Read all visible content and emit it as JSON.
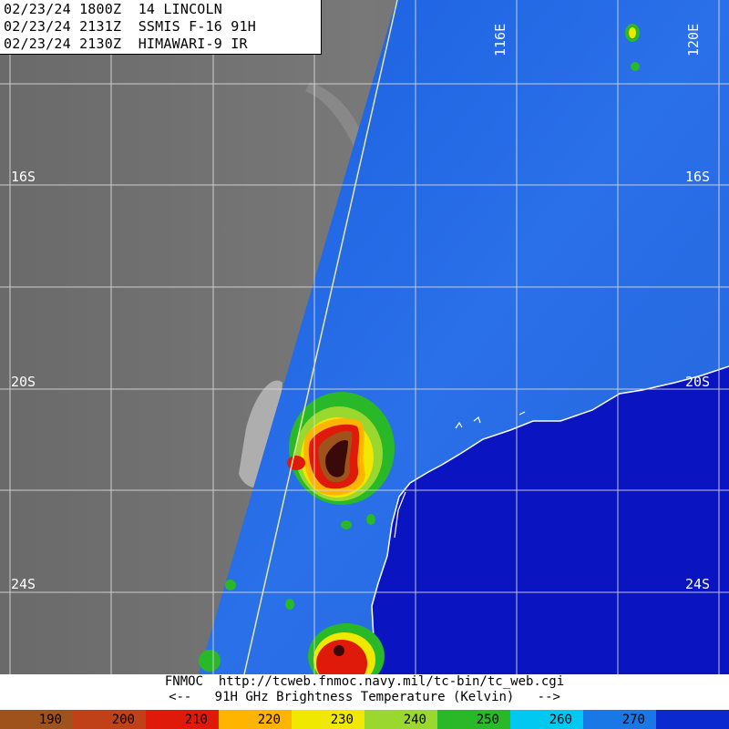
{
  "header": {
    "lines": [
      "02/23/24 1800Z  14 LINCOLN",
      "02/23/24 2131Z  SSMIS F-16 91H",
      "02/23/24 2130Z  HIMAWARI-9 IR"
    ]
  },
  "grid": {
    "lat_labels": [
      "16S",
      "20S",
      "24S"
    ],
    "lon_labels": [
      "116E",
      "120E"
    ]
  },
  "footer": {
    "credit": "FNMOC  http://tcweb.fnmoc.navy.mil/tc-bin/tc_web.cgi",
    "legend_title": "<--   91H GHz Brightness Temperature (Kelvin)   -->"
  },
  "colorbar": {
    "ticks": [
      "190",
      "200",
      "210",
      "220",
      "230",
      "240",
      "250",
      "260",
      "270"
    ],
    "segment_colors": [
      "#a0521c",
      "#c04018",
      "#e01a0a",
      "#ffb400",
      "#f0e800",
      "#9ad830",
      "#28b828",
      "#00c8f0",
      "#1a78e6",
      "#0a2ad0"
    ]
  },
  "colors": {
    "ir_gray": "#6e6e6e",
    "land_ocean_blue": "#1e5ad8",
    "ocean_dark_blue": "#0a14c0",
    "coastline": "#ffffff",
    "swath_edge": "#e8e8a0"
  }
}
